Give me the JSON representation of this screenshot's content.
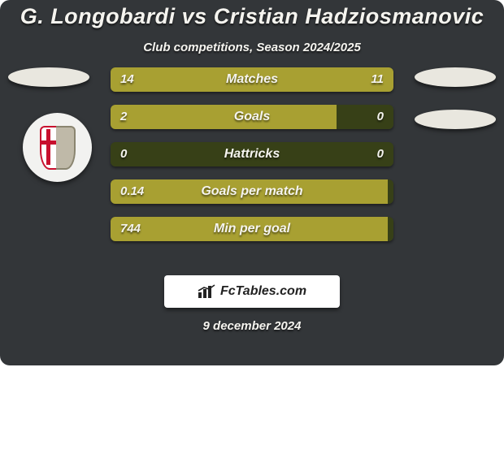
{
  "colors": {
    "card_bg": "#333639",
    "text": "#f5f4ef",
    "marker_fill": "#e9e7df",
    "row_track": "#374017",
    "row_fill": "#a8a032",
    "brand_bg": "#ffffff",
    "brand_text": "#222222"
  },
  "title": {
    "text": "G. Longobardi vs Cristian Hadziosmanovic",
    "fontsize": 27
  },
  "subtitle": {
    "text": "Club competitions, Season 2024/2025",
    "fontsize": 15
  },
  "markers": {
    "width": 100,
    "height": 24,
    "left_top": 0,
    "right_tops": [
      0,
      52
    ]
  },
  "rows_style": {
    "label_fontsize": 16,
    "value_fontsize": 15,
    "value_color": "#f5f4ef"
  },
  "rows": [
    {
      "label": "Matches",
      "left_val": "14",
      "right_val": "11",
      "left_pct": 56,
      "right_pct": 44
    },
    {
      "label": "Goals",
      "left_val": "2",
      "right_val": "0",
      "left_pct": 80,
      "right_pct": 0
    },
    {
      "label": "Hattricks",
      "left_val": "0",
      "right_val": "0",
      "left_pct": 0,
      "right_pct": 0
    },
    {
      "label": "Goals per match",
      "left_val": "0.14",
      "right_val": "",
      "left_pct": 98,
      "right_pct": 0
    },
    {
      "label": "Min per goal",
      "left_val": "744",
      "right_val": "",
      "left_pct": 98,
      "right_pct": 0
    }
  ],
  "brand": {
    "text": "FcTables.com",
    "fontsize": 16
  },
  "date": {
    "text": "9 december 2024",
    "fontsize": 15
  }
}
